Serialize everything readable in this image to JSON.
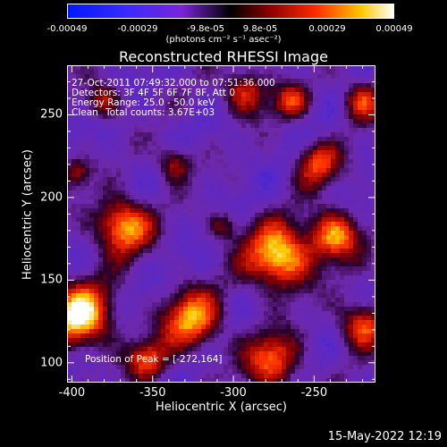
{
  "image": {
    "title": "Reconstructed RHESSI Image",
    "overlay": {
      "time_range": "27-Oct-2011 07:49:32.000 to 07:51:36.000",
      "detectors": "Detectors: 3F 4F 5F 6F 7F 8F, Att 0",
      "energy_range": "Energy Range: 25.0 - 50.0 keV",
      "clean_label": "Clean",
      "total_counts": "Total counts: 3.67E+03",
      "peak_position": "Position of Peak = [-272,164]"
    },
    "peak": {
      "x": -272,
      "y": 164
    },
    "xlabel": "Heliocentric X (arcsec)",
    "ylabel": "Heliocentric Y (arcsec)",
    "xlim": [
      -403,
      -212
    ],
    "ylim": [
      88,
      280
    ],
    "x_ticks": [
      "-400",
      "-350",
      "-300",
      "-250"
    ],
    "y_ticks": [
      "100",
      "150",
      "200",
      "250"
    ]
  },
  "colorbar": {
    "units": "(photons cm⁻² s⁻¹ asec⁻²)",
    "ticks": [
      "-0.00049",
      "-0.00029",
      "-9.8e-05",
      "9.8e-05",
      "0.00029",
      "0.00049"
    ],
    "range": [
      -0.00049,
      0.00049
    ]
  },
  "footer": {
    "timestamp": "15-May-2022 12:19"
  }
}
